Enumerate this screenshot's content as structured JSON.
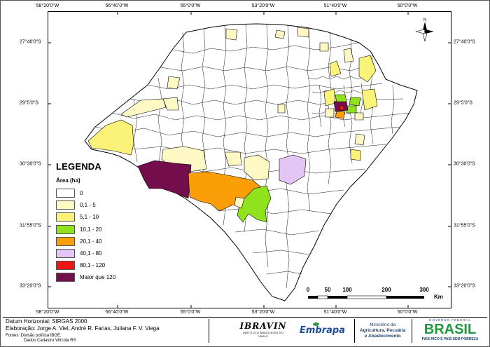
{
  "map": {
    "ticks_top": [
      "58°20'0\"W",
      "56°40'0\"W",
      "55°0'0\"W",
      "53°20'0\"W",
      "51°40'0\"W",
      "50°0'0\"W"
    ],
    "ticks_bottom": [
      "58°20'0\"W",
      "56°40'0\"W",
      "55°0'0\"W",
      "53°20'0\"W",
      "51°40'0\"W",
      "50°0'0\"W"
    ],
    "ticks_left": [
      "27°40'0\"S",
      "29°5'0\"S",
      "30°30'0\"S",
      "31°55'0\"S",
      "33°20'0\"S"
    ],
    "ticks_right": [
      "27°40'0\"S",
      "29°5'0\"S",
      "30°30'0\"S",
      "31°55'0\"S",
      "33°20'0\"S"
    ],
    "north_label": "N"
  },
  "legend": {
    "title": "LEGENDA",
    "subtitle": "Área (ha)",
    "items": [
      {
        "label": "0",
        "color": "#ffffff"
      },
      {
        "label": "0,1 - 5",
        "color": "#fdf8c4"
      },
      {
        "label": "5,1 - 10",
        "color": "#fbf27a"
      },
      {
        "label": "10,1 - 20",
        "color": "#8fe21c"
      },
      {
        "label": "20,1 - 40",
        "color": "#fb9e07"
      },
      {
        "label": "40,1 - 80",
        "color": "#e3c6f5"
      },
      {
        "label": "80,1 - 120",
        "color": "#f01616"
      },
      {
        "label": "Maior que 120",
        "color": "#730d4c"
      }
    ]
  },
  "scale": {
    "labels": [
      "0",
      "50",
      "100",
      "200",
      "300"
    ],
    "unit": "Km"
  },
  "credits": {
    "datum": "Datum Horizontal: SIRGAS 2000",
    "authors": "Elaboração: Jorge A. Viel, André R. Farias, Juliana F. V. Viega",
    "sources_line1": "Fontes: Divisão política IBGE,",
    "sources_line2": "Dados Cadastro Vitícola RS"
  },
  "logos": {
    "ibravin_name": "IBRAVIN",
    "ibravin_sub": "INSTITUTO BRASILEIRO DO VINHO",
    "embrapa": "Embrapa",
    "ministry_line1": "Ministério da",
    "ministry_line2": "Agricultura, Pecuária",
    "ministry_line3": "e Abastecimento",
    "brasil_gov": "GOVERNO FEDERAL",
    "brasil_name": "BRASIL",
    "brasil_slogan": "PAÍS RICO É PAÍS SEM POBREZA"
  }
}
